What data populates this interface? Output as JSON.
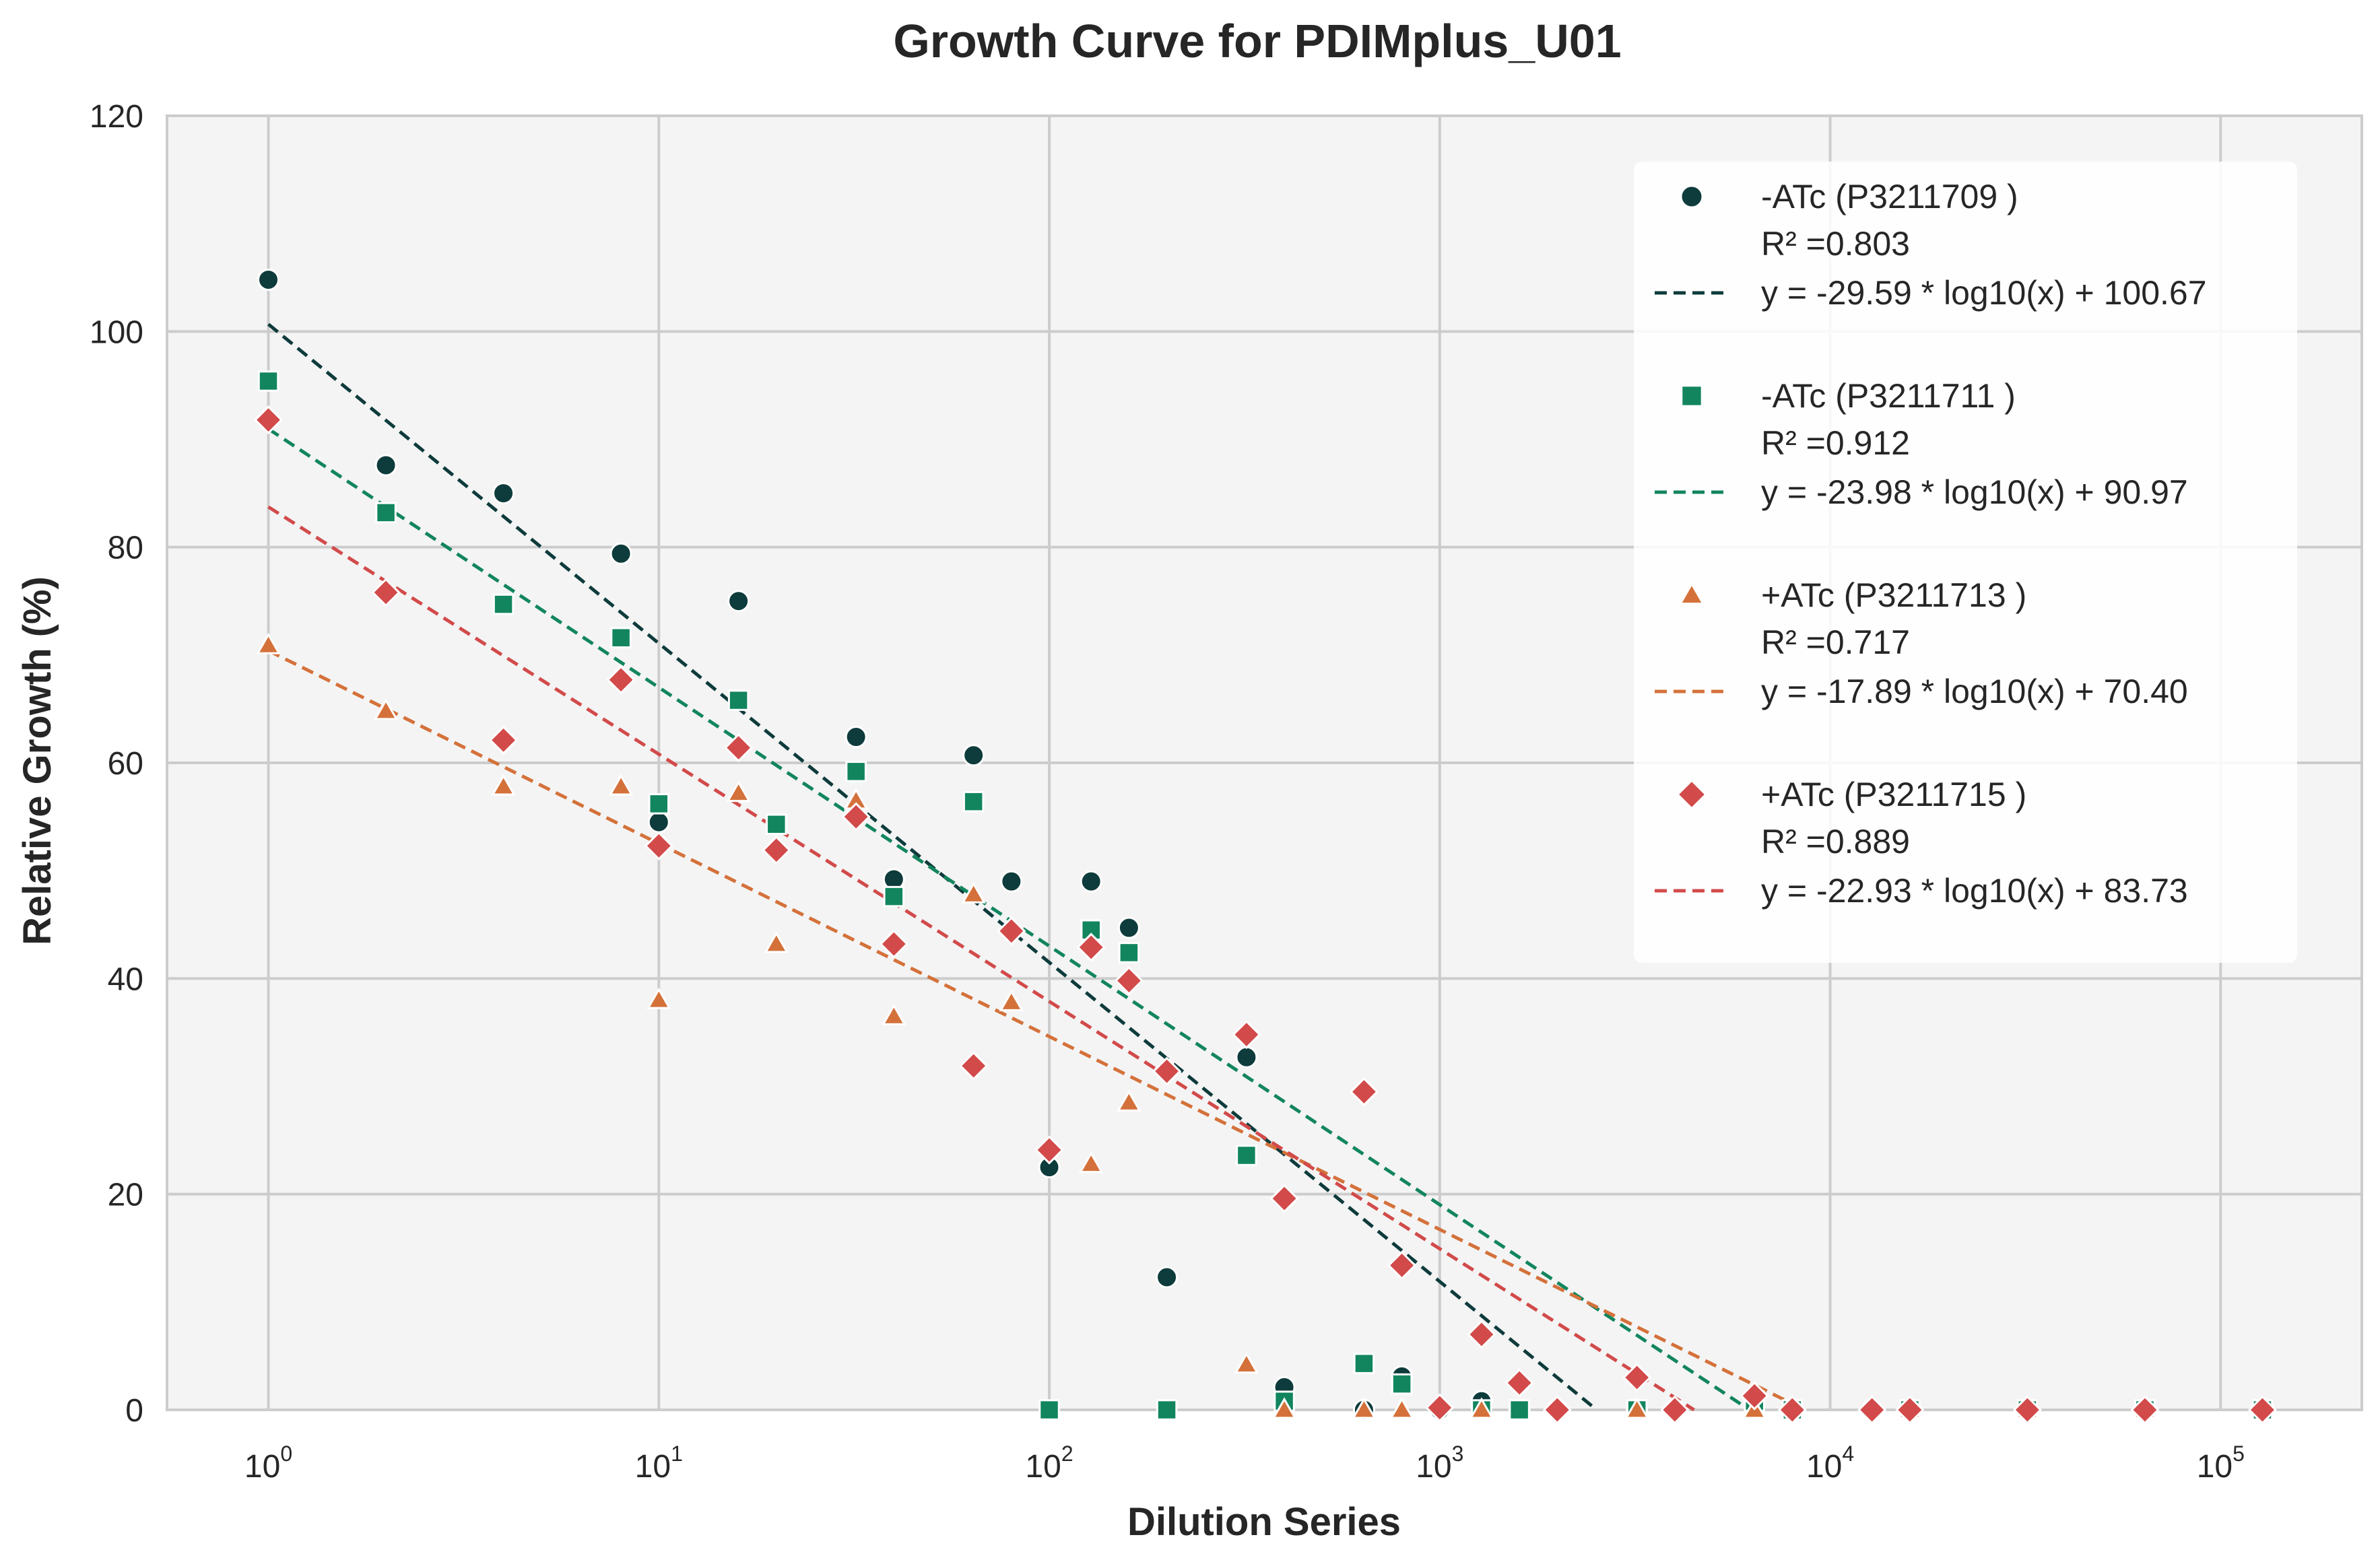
{
  "chart_data": {
    "type": "scatter",
    "title": "Growth Curve for PDIMplus_U01",
    "xlabel": "Dilution Series",
    "ylabel": "Relative Growth (%)",
    "xscale": "log",
    "xlim": [
      0.55,
      230000
    ],
    "ylim": [
      0,
      120
    ],
    "grid": true,
    "legend_position": "top-right",
    "x_ticks": [
      {
        "base": "10",
        "exp": "0"
      },
      {
        "base": "10",
        "exp": "1"
      },
      {
        "base": "10",
        "exp": "2"
      },
      {
        "base": "10",
        "exp": "3"
      },
      {
        "base": "10",
        "exp": "4"
      },
      {
        "base": "10",
        "exp": "5"
      }
    ],
    "y_ticks": [
      "0",
      "20",
      "40",
      "60",
      "80",
      "100",
      "120"
    ],
    "series": [
      {
        "name": "-ATc (P3211709 )",
        "marker": "circle",
        "color": "#0e3b3b",
        "r2_label": "R² =0.803",
        "fit_label": "y = -29.59 * log10(x) + 100.67",
        "slope": -29.59,
        "intercept": 100.67,
        "points": [
          [
            1,
            104.8
          ],
          [
            2,
            87.6
          ],
          [
            4,
            85.0
          ],
          [
            8,
            79.4
          ],
          [
            10,
            54.5
          ],
          [
            16,
            75.0
          ],
          [
            20,
            54.3
          ],
          [
            32,
            62.4
          ],
          [
            40,
            49.2
          ],
          [
            64,
            60.7
          ],
          [
            80,
            49.0
          ],
          [
            100,
            22.5
          ],
          [
            128,
            49.0
          ],
          [
            160,
            44.7
          ],
          [
            200,
            12.3
          ],
          [
            320,
            32.7
          ],
          [
            400,
            2.1
          ],
          [
            640,
            0
          ],
          [
            800,
            3.1
          ],
          [
            1000,
            0
          ],
          [
            1280,
            0.8
          ],
          [
            1600,
            0
          ],
          [
            2000,
            0
          ],
          [
            3200,
            0
          ],
          [
            4000,
            0
          ],
          [
            6400,
            0.8
          ],
          [
            8000,
            0
          ],
          [
            12800,
            0
          ],
          [
            16000,
            0
          ],
          [
            32000,
            0
          ],
          [
            64000,
            0
          ],
          [
            128000,
            0
          ]
        ]
      },
      {
        "name": "-ATc (P3211711 )",
        "marker": "square",
        "color": "#12855e",
        "r2_label": "R² =0.912",
        "fit_label": "y = -23.98 * log10(x) + 90.97",
        "slope": -23.98,
        "intercept": 90.97,
        "points": [
          [
            1,
            95.4
          ],
          [
            2,
            83.2
          ],
          [
            4,
            74.7
          ],
          [
            8,
            71.6
          ],
          [
            10,
            56.2
          ],
          [
            16,
            65.8
          ],
          [
            20,
            54.3
          ],
          [
            32,
            59.2
          ],
          [
            40,
            47.6
          ],
          [
            64,
            56.4
          ],
          [
            100,
            0
          ],
          [
            128,
            44.5
          ],
          [
            160,
            42.4
          ],
          [
            200,
            0
          ],
          [
            320,
            23.6
          ],
          [
            400,
            0.8
          ],
          [
            640,
            4.3
          ],
          [
            800,
            2.4
          ],
          [
            1280,
            0
          ],
          [
            1600,
            0
          ],
          [
            3200,
            0
          ],
          [
            6400,
            0.8
          ],
          [
            8000,
            0
          ],
          [
            16000,
            0
          ],
          [
            32000,
            0
          ],
          [
            64000,
            0
          ],
          [
            128000,
            0
          ]
        ]
      },
      {
        "name": "+ATc (P3211713 )",
        "marker": "triangle",
        "color": "#d4713a",
        "r2_label": "R² =0.717",
        "fit_label": "y = -17.89 * log10(x) + 70.40",
        "slope": -17.89,
        "intercept": 70.4,
        "points": [
          [
            1,
            70.9
          ],
          [
            2,
            64.8
          ],
          [
            4,
            57.8
          ],
          [
            8,
            57.8
          ],
          [
            10,
            38.0
          ],
          [
            16,
            57.2
          ],
          [
            20,
            43.2
          ],
          [
            32,
            56.5
          ],
          [
            40,
            36.5
          ],
          [
            64,
            47.8
          ],
          [
            80,
            37.8
          ],
          [
            128,
            22.8
          ],
          [
            160,
            28.5
          ],
          [
            320,
            4.2
          ],
          [
            400,
            0
          ],
          [
            640,
            0
          ],
          [
            800,
            0
          ],
          [
            1280,
            0
          ],
          [
            3200,
            0
          ],
          [
            6400,
            0
          ],
          [
            16000,
            0
          ],
          [
            32000,
            0
          ],
          [
            64000,
            0
          ]
        ]
      },
      {
        "name": "+ATc (P3211715 )",
        "marker": "diamond",
        "color": "#d24a4a",
        "r2_label": "R² =0.889",
        "fit_label": "y = -22.93 * log10(x) + 83.73",
        "slope": -22.93,
        "intercept": 83.73,
        "points": [
          [
            1,
            91.8
          ],
          [
            2,
            75.8
          ],
          [
            4,
            62.1
          ],
          [
            8,
            67.7
          ],
          [
            10,
            52.3
          ],
          [
            16,
            61.4
          ],
          [
            20,
            51.9
          ],
          [
            32,
            55.0
          ],
          [
            40,
            43.2
          ],
          [
            64,
            31.9
          ],
          [
            80,
            44.4
          ],
          [
            100,
            24.1
          ],
          [
            128,
            42.9
          ],
          [
            160,
            39.8
          ],
          [
            200,
            31.4
          ],
          [
            320,
            34.8
          ],
          [
            400,
            19.6
          ],
          [
            640,
            29.5
          ],
          [
            800,
            13.4
          ],
          [
            1000,
            0.2
          ],
          [
            1280,
            7.0
          ],
          [
            1600,
            2.5
          ],
          [
            2000,
            0
          ],
          [
            3200,
            3.0
          ],
          [
            4000,
            0
          ],
          [
            6400,
            1.3
          ],
          [
            8000,
            0
          ],
          [
            12800,
            0
          ],
          [
            16000,
            0
          ],
          [
            32000,
            0
          ],
          [
            64000,
            0
          ],
          [
            128000,
            0
          ]
        ]
      }
    ]
  }
}
